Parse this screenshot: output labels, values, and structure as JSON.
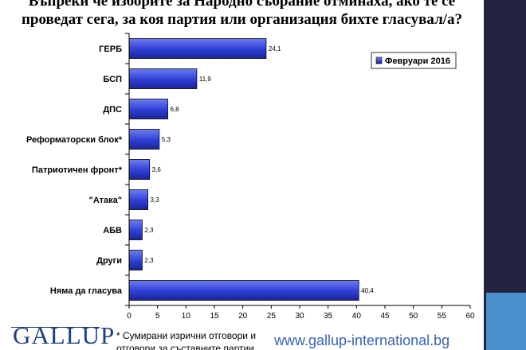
{
  "title": {
    "line1": "Въпреки че изборите за Народно събрание отминаха, ако те се",
    "line2": "проведат сега, за коя партия или организация бихте гласувал/а?"
  },
  "footer": {
    "logo_text": "GALLUP",
    "footnote": "* Сумирани изрични отговори и отговори за съставните партии",
    "url": "www.gallup-international.bg"
  },
  "colors": {
    "bar": "#2e3fd6",
    "bar_light": "#6f7df0",
    "right_band": "#23233f",
    "accent": "#4a90cf",
    "url": "#3a62b5"
  },
  "chart_data": {
    "type": "bar",
    "orientation": "horizontal",
    "categories": [
      "ГЕРБ",
      "БСП",
      "ДПС",
      "Реформаторски блок*",
      "Патриотичен фронт*",
      "\"Атака\"",
      "АБВ",
      "Други",
      "Няма да гласува"
    ],
    "series": [
      {
        "name": "Февруари 2016",
        "values": [
          24.1,
          11.9,
          6.8,
          5.3,
          3.6,
          3.3,
          2.3,
          2.3,
          40.4
        ]
      }
    ],
    "data_labels": [
      "24,1",
      "11,9",
      "6,8",
      "5,3",
      "3,6",
      "3,3",
      "2,3",
      "2,3",
      "40,4"
    ],
    "xlim": [
      0,
      60
    ],
    "x_ticks": [
      "0",
      "5",
      "10",
      "15",
      "20",
      "25",
      "30",
      "35",
      "40",
      "45",
      "50",
      "55",
      "60"
    ],
    "grid": false,
    "legend_position": "top-right"
  }
}
